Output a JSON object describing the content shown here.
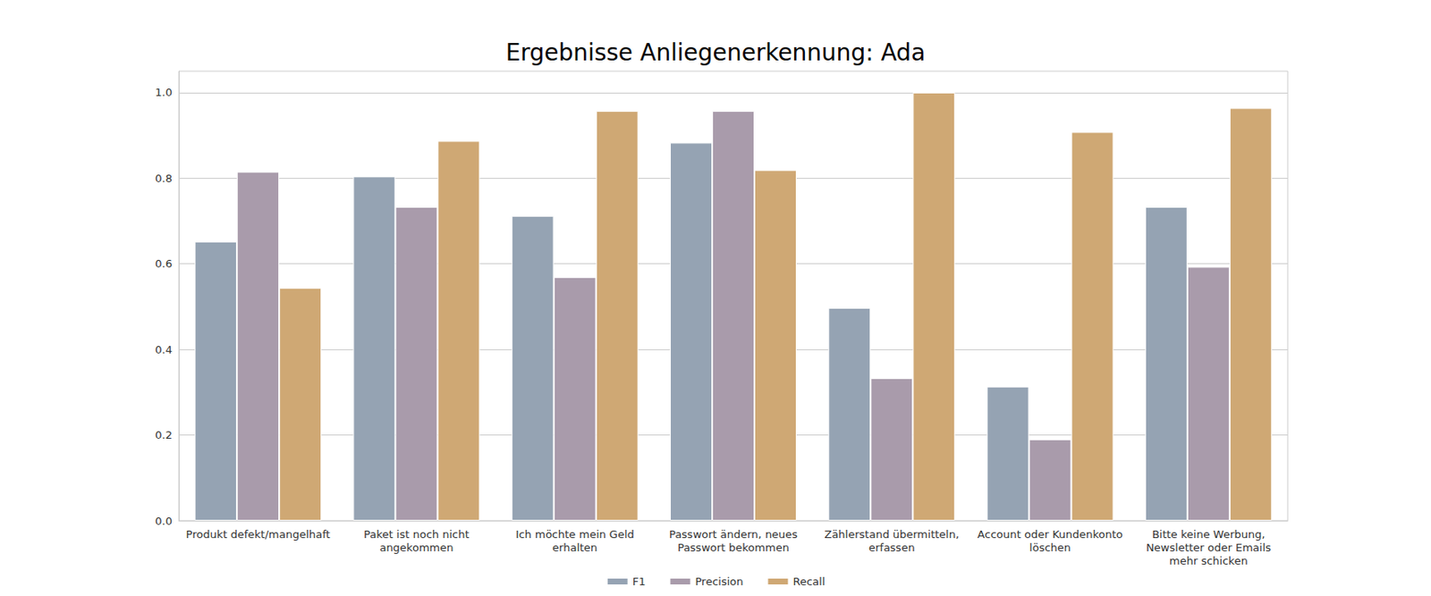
{
  "chart_data": {
    "type": "bar",
    "title": "Ergebnisse Anliegenerkennung: Ada",
    "categories": [
      "Produkt defekt/mangelhaft",
      "Paket ist noch nicht\nangekommen",
      "Ich möchte mein Geld\nerhalten",
      "Passwort ändern, neues\nPasswort bekommen",
      "Zählerstand übermitteln,\nerfassen",
      "Account oder Kundenkonto\nlöschen",
      "Bitte keine Werbung,\nNewsletter oder Emails\nmehr schicken"
    ],
    "series": [
      {
        "name": "F1",
        "color": "#95a3b3",
        "values": [
          0.652,
          0.804,
          0.712,
          0.883,
          0.497,
          0.313,
          0.733
        ]
      },
      {
        "name": "Precision",
        "color": "#a99bab",
        "values": [
          0.815,
          0.733,
          0.569,
          0.957,
          0.333,
          0.19,
          0.593
        ]
      },
      {
        "name": "Recall",
        "color": "#cfa874",
        "values": [
          0.544,
          0.887,
          0.957,
          0.819,
          1.0,
          0.908,
          0.964
        ]
      }
    ],
    "ylim": [
      0,
      1.05
    ],
    "yticks": [
      {
        "value": 0,
        "label": "0.0"
      },
      0.2,
      0.4,
      0.6,
      0.8,
      {
        "value": 1,
        "label": "1.0"
      }
    ],
    "grid": true,
    "legend": "bottom"
  }
}
